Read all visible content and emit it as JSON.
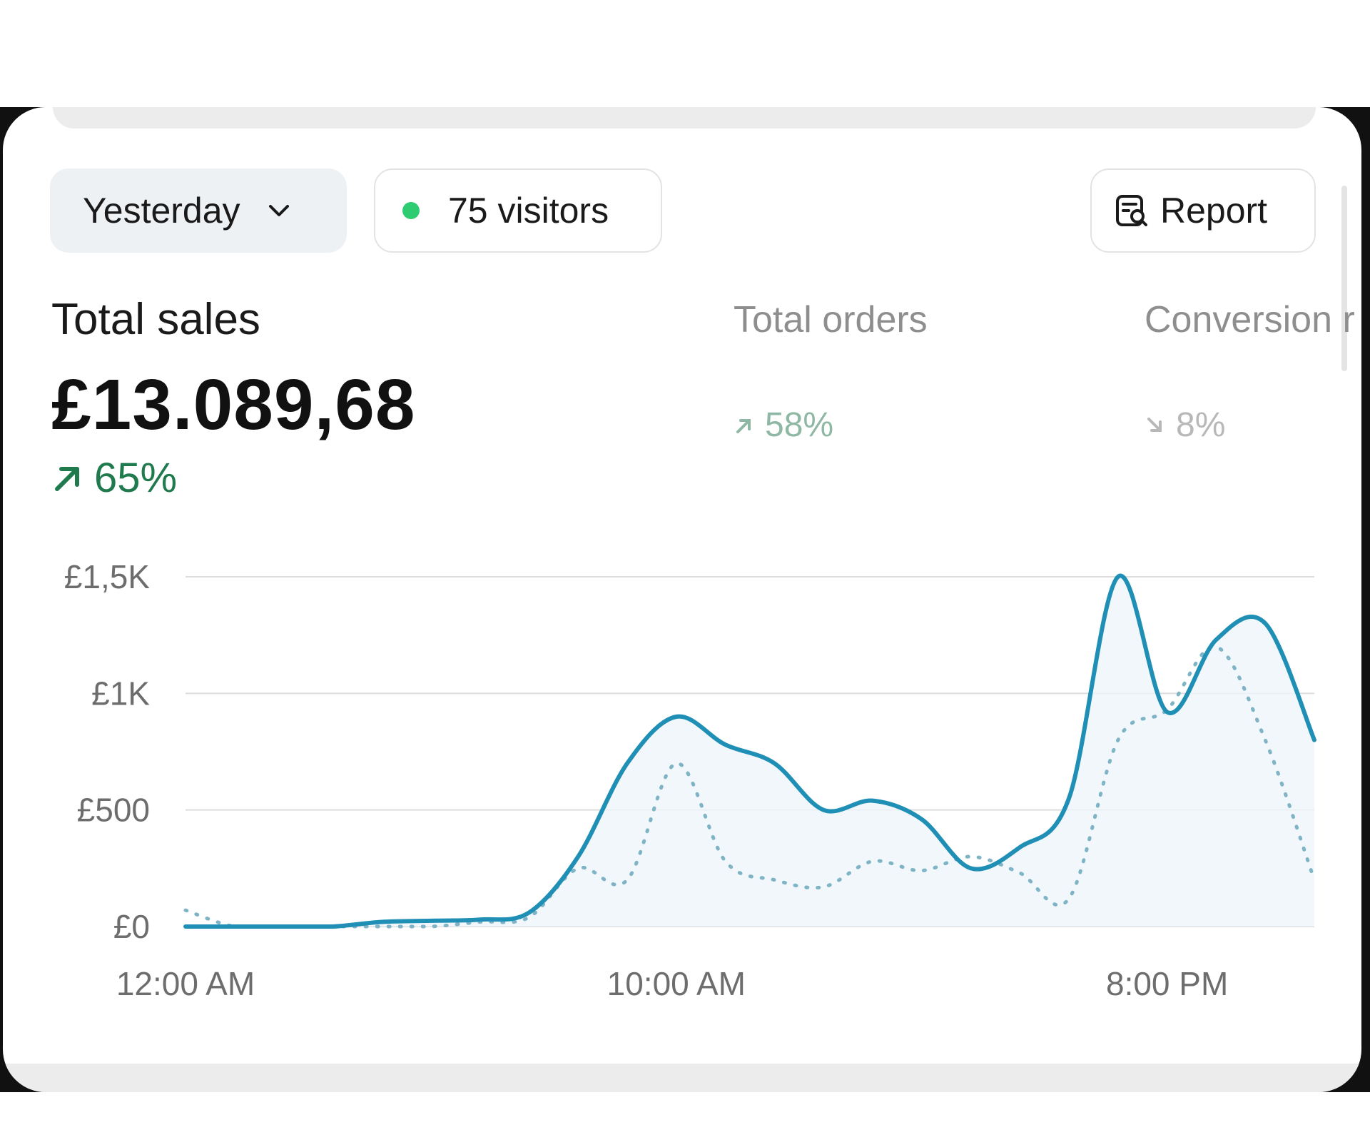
{
  "toolbar": {
    "period_label": "Yesterday",
    "visitors_label": "75 visitors",
    "report_label": "Report",
    "icons": [
      "chevron-down-icon",
      "status-dot-icon",
      "report-search-icon"
    ],
    "colors": {
      "live_dot": "#2ecc71"
    }
  },
  "metrics": [
    {
      "label": "Total sales",
      "value": "£13.089,68",
      "change": "65%",
      "direction": "up"
    },
    {
      "label": "Total orders",
      "change": "58%",
      "direction": "up"
    },
    {
      "label": "Conversion r",
      "change": "8%",
      "direction": "down"
    }
  ],
  "chart_data": {
    "type": "line",
    "yticks": [
      "£0",
      "£500",
      "£1K",
      "£1,5K"
    ],
    "ylim": [
      0,
      1500
    ],
    "xticks": [
      "12:00 AM",
      "10:00 AM",
      "8:00 PM"
    ],
    "x": [
      0,
      1,
      2,
      3,
      4,
      5,
      6,
      7,
      8,
      9,
      10,
      11,
      12,
      13,
      14,
      15,
      16,
      17,
      18,
      19,
      20,
      21,
      22,
      23
    ],
    "grid": true,
    "colors": {
      "current": "#1f8fb5",
      "previous": "#7fb3c6"
    },
    "series": [
      {
        "values": [
          0,
          0,
          0,
          0,
          20,
          25,
          30,
          60,
          300,
          700,
          900,
          780,
          700,
          500,
          540,
          460,
          250,
          340,
          550,
          1500,
          920,
          1230,
          1300,
          800
        ]
      },
      {
        "values": [
          70,
          0,
          0,
          0,
          0,
          0,
          20,
          40,
          250,
          200,
          700,
          280,
          200,
          170,
          280,
          240,
          300,
          230,
          120,
          800,
          930,
          1200,
          800,
          200
        ]
      }
    ]
  }
}
